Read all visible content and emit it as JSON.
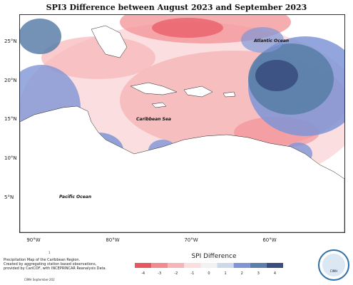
{
  "title": "SPI3 Difference between August 2023 and September 2023",
  "map": {
    "labels": {
      "atlantic": "Atlantic Ocean",
      "caribbean": "Caribbean Sea",
      "pacific": "Pacific Ocean"
    },
    "lat_ticks": [
      "25°N",
      "20°N",
      "15°N",
      "10°N",
      "5°N"
    ],
    "lon_ticks": [
      "90°W",
      "80°W",
      "70°W",
      "60°W"
    ]
  },
  "legend": {
    "title": "SPI Difference",
    "ticks": [
      "-4",
      "-3",
      "-2",
      "-1",
      "0",
      "1",
      "2",
      "3",
      "4"
    ],
    "colors": [
      "#e8565f",
      "#f28a8f",
      "#f6b5b8",
      "#fbdfe0",
      "#f2f2f2",
      "#cdd9ea",
      "#7f95d6",
      "#5a7fa8",
      "#3a4e7e"
    ]
  },
  "footnote": {
    "marker": "1",
    "lines": [
      "Precipitation Map of the Caribbean Region.",
      "Created by aggregating station based observations,",
      "provided by CariCOF, with INCEPRINCAR Reanalysis Data."
    ],
    "credit": "CIMH September-202"
  },
  "logo": {
    "text": "CIMH"
  }
}
